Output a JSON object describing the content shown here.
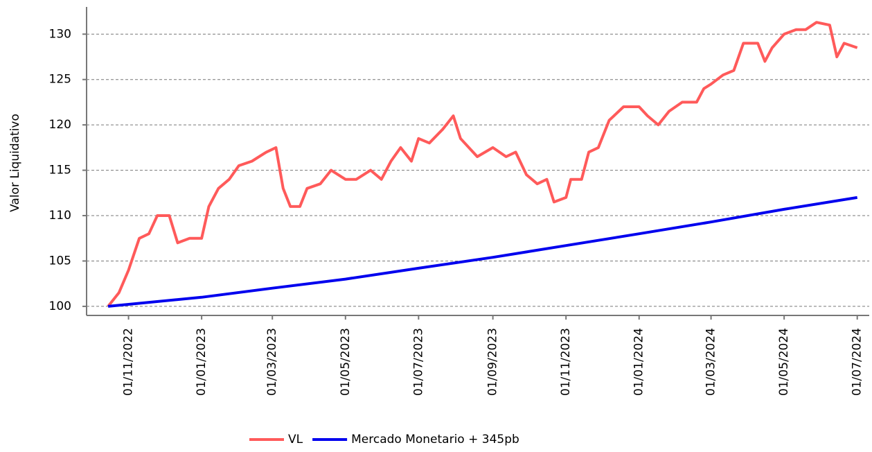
{
  "chart_data": {
    "type": "line",
    "y_label": "Valor Liquidativo",
    "xlim": [
      "27/09/2022",
      "11/07/2024"
    ],
    "xticks": [
      "01/11/2022",
      "01/01/2023",
      "01/03/2023",
      "01/05/2023",
      "01/07/2023",
      "01/09/2023",
      "01/11/2023",
      "01/01/2024",
      "01/03/2024",
      "01/05/2024",
      "01/07/2024"
    ],
    "ylim": [
      99,
      133
    ],
    "yticks": [
      100,
      105,
      110,
      115,
      120,
      125,
      130
    ],
    "grid": true,
    "legend": "bottom",
    "series": [
      {
        "name": "VL",
        "color": "#ff5a5a",
        "x": [
          "15/10/2022",
          "24/10/2022",
          "01/11/2022",
          "10/11/2022",
          "18/11/2022",
          "25/11/2022",
          "05/12/2022",
          "12/12/2022",
          "22/12/2022",
          "01/01/2023",
          "07/01/2023",
          "15/01/2023",
          "24/01/2023",
          "01/02/2023",
          "12/02/2023",
          "24/02/2023",
          "04/03/2023",
          "10/03/2023",
          "16/03/2023",
          "24/03/2023",
          "30/03/2023",
          "10/04/2023",
          "19/04/2023",
          "01/05/2023",
          "10/05/2023",
          "22/05/2023",
          "31/05/2023",
          "08/06/2023",
          "16/06/2023",
          "25/06/2023",
          "01/07/2023",
          "10/07/2023",
          "21/07/2023",
          "30/07/2023",
          "05/08/2023",
          "19/08/2023",
          "01/09/2023",
          "12/09/2023",
          "20/09/2023",
          "29/09/2023",
          "08/10/2023",
          "16/10/2023",
          "22/10/2023",
          "01/11/2023",
          "05/11/2023",
          "14/11/2023",
          "20/11/2023",
          "28/11/2023",
          "07/12/2023",
          "19/12/2023",
          "01/01/2024",
          "08/01/2024",
          "17/01/2024",
          "26/01/2024",
          "06/02/2024",
          "18/02/2024",
          "24/02/2024",
          "01/03/2024",
          "11/03/2024",
          "20/03/2024",
          "28/03/2024",
          "09/04/2024",
          "15/04/2024",
          "21/04/2024",
          "01/05/2024",
          "11/05/2024",
          "19/05/2024",
          "28/05/2024",
          "08/06/2024",
          "14/06/2024",
          "20/06/2024",
          "01/07/2024"
        ],
        "values": [
          100,
          101.5,
          104,
          107.5,
          108,
          110,
          110,
          107,
          107.5,
          107.5,
          111,
          113,
          114,
          115.5,
          116,
          117,
          117.5,
          113,
          111,
          111,
          113,
          113.5,
          115,
          114,
          114,
          115,
          114,
          116,
          117.5,
          116,
          118.5,
          118,
          119.5,
          121,
          118.5,
          116.5,
          117.5,
          116.5,
          117,
          114.5,
          113.5,
          114,
          111.5,
          112,
          114,
          114,
          117,
          117.5,
          120.5,
          122,
          122,
          121,
          120,
          121.5,
          122.5,
          122.5,
          124,
          124.5,
          125.5,
          126,
          129,
          129,
          127,
          128.5,
          130,
          130.5,
          130.5,
          131.3,
          131,
          127.5,
          129,
          128.5
        ]
      },
      {
        "name": "Mercado Monetario + 345pb",
        "color": "#0000ee",
        "x": [
          "15/10/2022",
          "01/01/2023",
          "01/03/2023",
          "01/05/2023",
          "01/07/2023",
          "01/09/2023",
          "01/11/2023",
          "01/01/2024",
          "01/03/2024",
          "01/05/2024",
          "01/07/2024"
        ],
        "values": [
          100,
          101,
          102,
          103,
          104.2,
          105.4,
          106.7,
          108,
          109.3,
          110.7,
          112
        ]
      }
    ]
  }
}
